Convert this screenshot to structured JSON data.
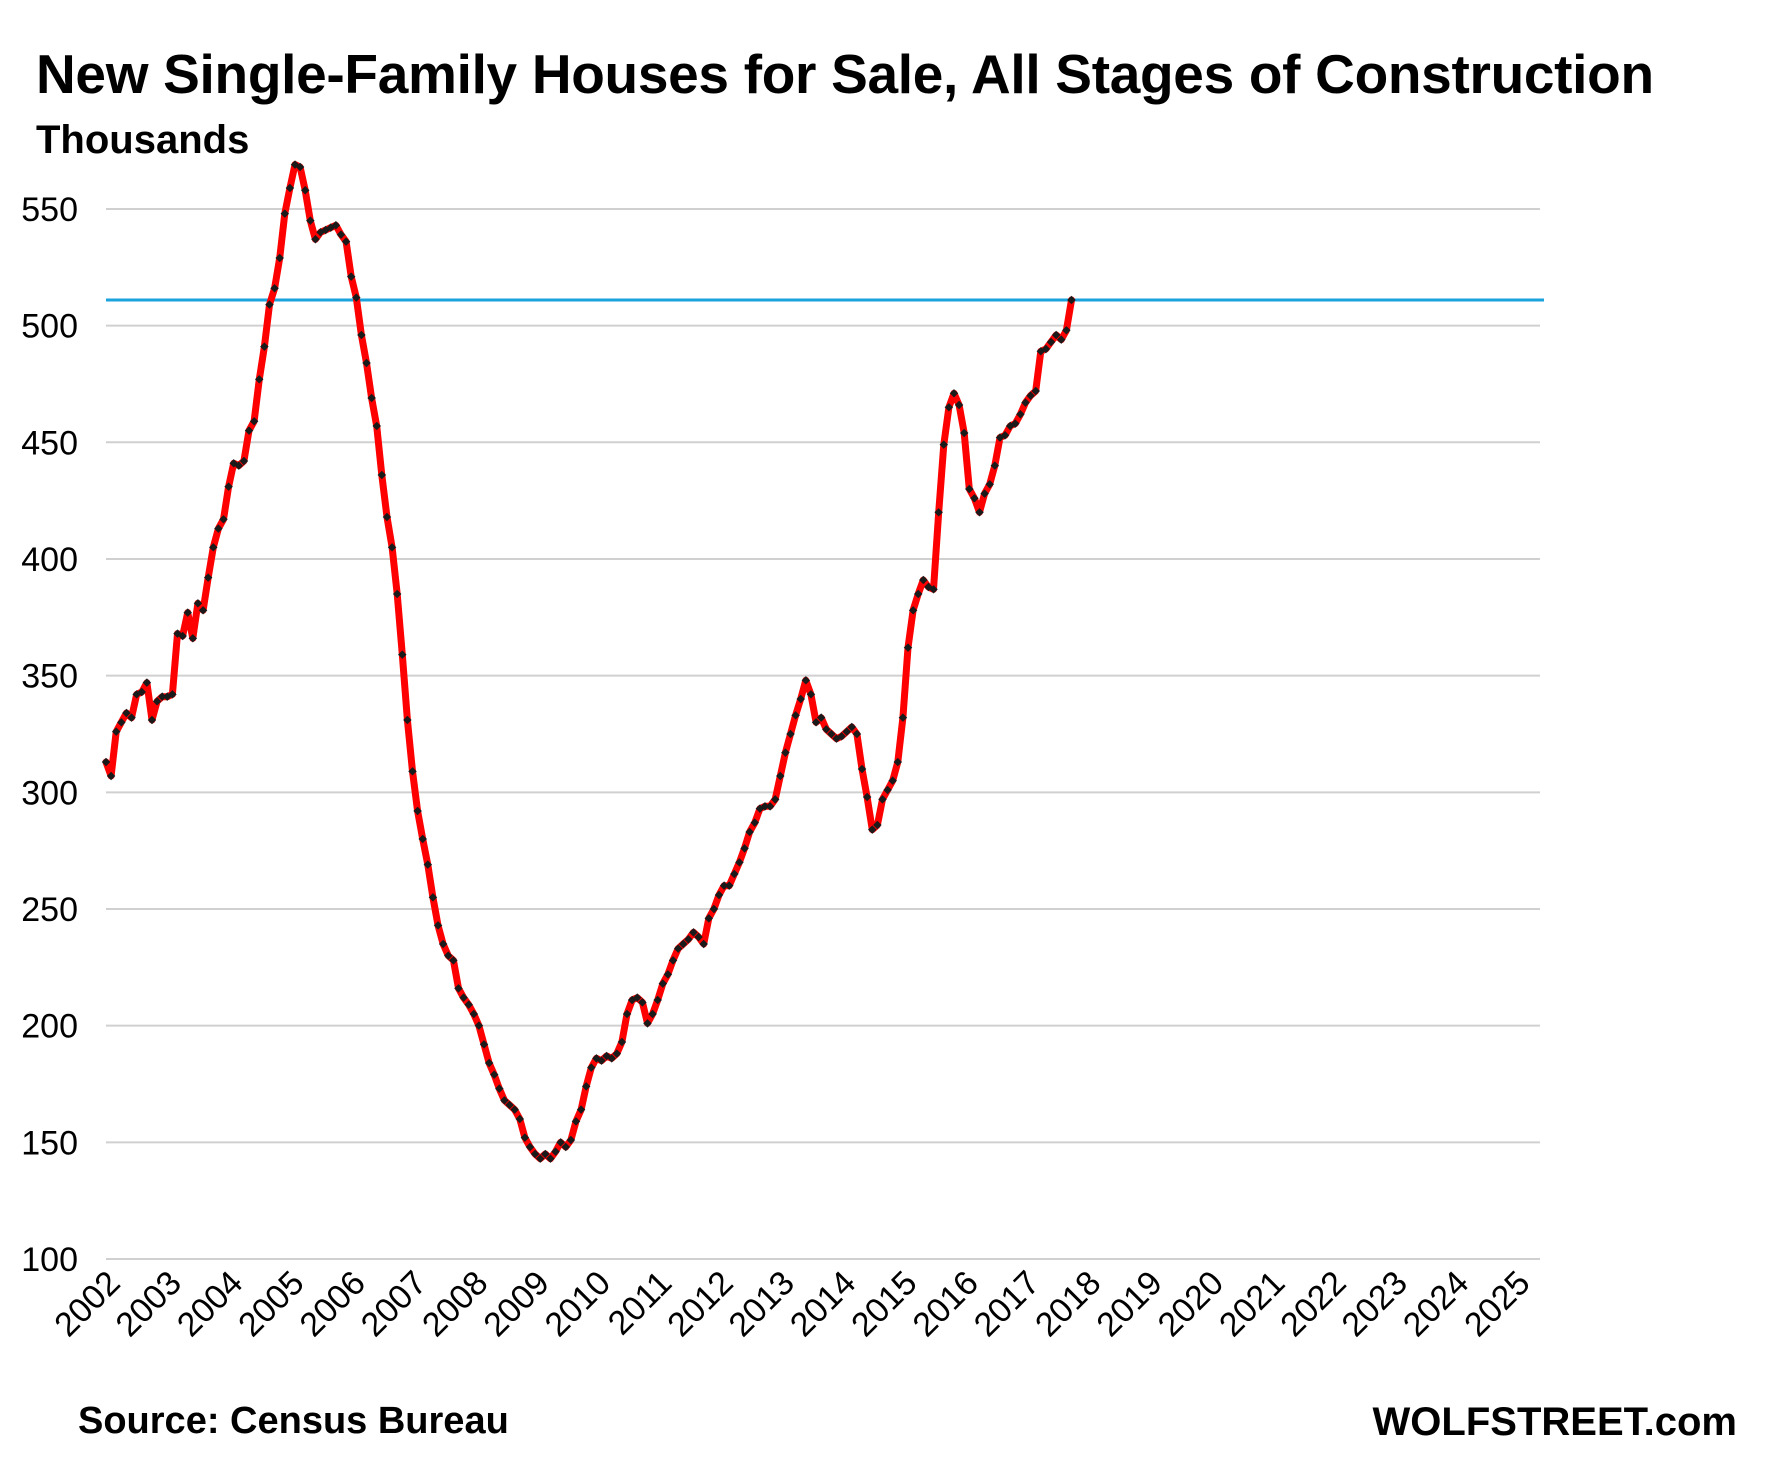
{
  "header": {
    "title": "New Single-Family Houses for Sale, All Stages of Construction",
    "subtitle": "Thousands"
  },
  "footer": {
    "source": "Source: Census Bureau",
    "brand": "WOLFSTREET.com"
  },
  "colors": {
    "line": "#ff0000",
    "markers": "#1a1a1a",
    "reference_line": "#1ba3dd",
    "grid": "#d0d0d0"
  },
  "chart_data": {
    "type": "line",
    "title": "New Single-Family Houses for Sale, All Stages of Construction",
    "ylabel": "Thousands",
    "xlabel": "",
    "ylim": [
      100,
      570
    ],
    "yticks": [
      100,
      150,
      200,
      250,
      300,
      350,
      400,
      450,
      500,
      550
    ],
    "xticks": [
      "2002",
      "2003",
      "2004",
      "2005",
      "2006",
      "2007",
      "2008",
      "2009",
      "2010",
      "2011",
      "2012",
      "2013",
      "2014",
      "2015",
      "2016",
      "2017",
      "2018",
      "2019",
      "2020",
      "2021",
      "2022",
      "2023",
      "2024",
      "2025"
    ],
    "grid": true,
    "legend": "none",
    "reference_line": 511,
    "x_start": "2002-01",
    "frequency": "monthly",
    "series": [
      {
        "values": [
          313,
          307,
          326,
          330,
          334,
          332,
          342,
          343,
          347,
          331,
          339,
          341,
          341,
          342,
          368,
          367,
          377,
          366,
          381,
          378,
          392,
          405,
          413,
          417,
          431,
          441,
          440,
          442,
          455,
          459,
          477,
          491,
          509,
          516,
          529,
          548,
          559,
          569,
          568,
          558,
          545,
          537,
          540,
          541,
          542,
          543,
          539,
          536,
          521,
          512,
          496,
          484,
          469,
          457,
          436,
          418,
          405,
          385,
          359,
          331,
          309,
          292,
          280,
          269,
          255,
          243,
          235,
          230,
          228,
          216,
          212,
          209,
          205,
          200,
          192,
          184,
          179,
          173,
          168,
          166,
          164,
          160,
          152,
          148,
          145,
          143,
          145,
          143,
          146,
          150,
          148,
          151,
          159,
          164,
          174,
          182,
          186,
          185,
          187,
          186,
          188,
          193,
          205,
          211,
          212,
          210,
          201,
          205,
          211,
          218,
          222,
          228,
          233,
          235,
          237,
          240,
          238,
          235,
          246,
          250,
          256,
          260,
          260,
          265,
          270,
          276,
          283,
          287,
          293,
          294,
          294,
          297,
          307,
          317,
          325,
          333,
          340,
          348,
          342,
          330,
          332,
          327,
          325,
          323,
          324,
          326,
          328,
          325,
          310,
          298,
          284,
          286,
          297,
          301,
          305,
          313,
          332,
          362,
          378,
          385,
          391,
          388,
          387,
          420,
          449,
          465,
          471,
          466,
          454,
          430,
          426,
          420,
          428,
          432,
          440,
          452,
          453,
          457,
          458,
          462,
          467,
          470,
          472,
          489,
          490,
          493,
          496,
          494,
          498,
          511
        ]
      }
    ]
  }
}
